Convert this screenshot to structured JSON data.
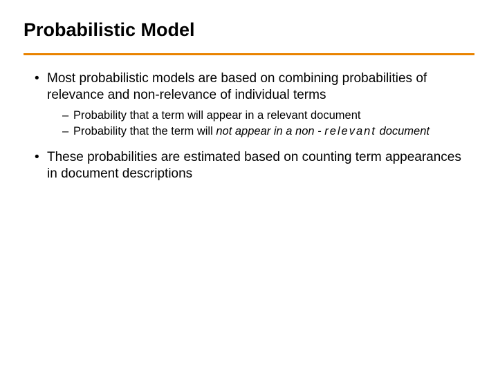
{
  "background_color": "#ffffff",
  "text_color": "#000000",
  "rule_color": "#e98300",
  "title": {
    "text": "Probabilistic Model",
    "fontsize": 27,
    "weight": "bold"
  },
  "body": {
    "fontsize_main": 19,
    "fontsize_sub": 16.5,
    "bullets": [
      {
        "text": "Most probabilistic models are based on combining probabilities of relevance and non-relevance of individual terms",
        "sub": [
          {
            "plain": "Probability that a term will appear in a relevant document"
          },
          {
            "prefix": "Probability that the term will ",
            "italic1": "not",
            "mid": " appear in a non",
            "dash_spaced": "‐",
            "spaced_tail": "relevant",
            "suffix": "document"
          }
        ]
      },
      {
        "text": "These probabilities are estimated based on counting term appearances in document descriptions",
        "sub": []
      }
    ]
  }
}
